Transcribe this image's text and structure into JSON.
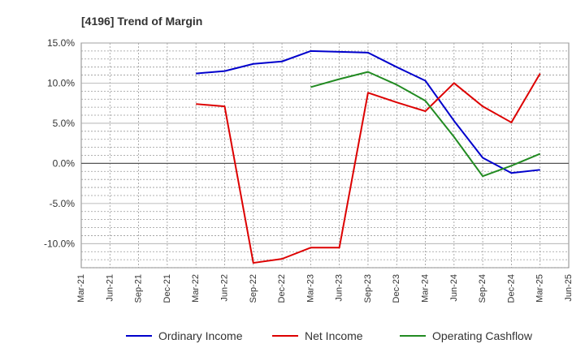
{
  "chart_data": {
    "type": "line",
    "title": "[4196]  Trend of Margin",
    "xlabel": "",
    "ylabel": "",
    "ylim": [
      -13,
      15
    ],
    "y_ticks": [
      15,
      10,
      5,
      0,
      -5,
      -10
    ],
    "y_tick_labels": [
      "15.0%",
      "10.0%",
      "5.0%",
      "0.0%",
      "-5.0%",
      "-10.0%"
    ],
    "categories": [
      "Mar-21",
      "Jun-21",
      "Sep-21",
      "Dec-21",
      "Mar-22",
      "Jun-22",
      "Sep-22",
      "Dec-22",
      "Mar-23",
      "Jun-23",
      "Sep-23",
      "Dec-23",
      "Mar-24",
      "Jun-24",
      "Sep-24",
      "Dec-24",
      "Mar-25",
      "Jun-25"
    ],
    "grid": true,
    "legend_position": "bottom",
    "series": [
      {
        "name": "Ordinary Income",
        "color": "#0000cc",
        "values": [
          null,
          null,
          null,
          null,
          11.2,
          11.5,
          12.4,
          12.7,
          14.0,
          13.9,
          13.8,
          12.0,
          10.3,
          5.3,
          0.7,
          -1.2,
          -0.8,
          null
        ]
      },
      {
        "name": "Net Income",
        "color": "#dd0000",
        "values": [
          null,
          null,
          null,
          null,
          7.4,
          7.1,
          -12.4,
          -11.9,
          -10.5,
          -10.5,
          8.8,
          7.6,
          6.5,
          10.0,
          7.1,
          5.1,
          11.2,
          null
        ]
      },
      {
        "name": "Operating Cashflow",
        "color": "#228b22",
        "values": [
          null,
          null,
          null,
          null,
          null,
          null,
          null,
          null,
          9.5,
          10.5,
          11.4,
          9.8,
          7.8,
          3.3,
          -1.6,
          -0.3,
          1.2,
          null
        ]
      }
    ]
  }
}
